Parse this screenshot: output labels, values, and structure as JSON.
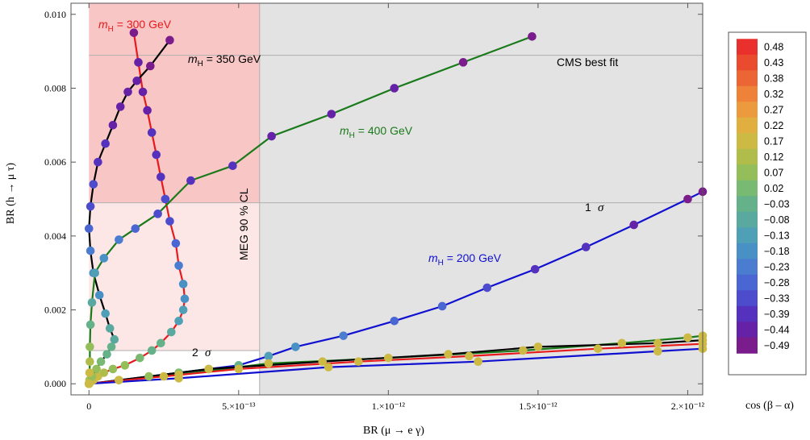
{
  "chart_data": {
    "type": "scatter",
    "xlabel": "BR (μ → e γ)",
    "ylabel": "BR (h → μ τ)",
    "xlim": [
      -6e-14,
      2.05e-12
    ],
    "ylim": [
      -0.0003,
      0.0103
    ],
    "xticks": [
      {
        "value": 0,
        "label": "0"
      },
      {
        "value": 5e-13,
        "label": "5.×10⁻¹³"
      },
      {
        "value": 1e-12,
        "label": "1.×10⁻¹²"
      },
      {
        "value": 1.5e-12,
        "label": "1.5×10⁻¹²"
      },
      {
        "value": 2e-12,
        "label": "2.×10⁻¹²"
      }
    ],
    "yticks": [
      {
        "value": 0.0,
        "label": "0.000"
      },
      {
        "value": 0.002,
        "label": "0.002"
      },
      {
        "value": 0.004,
        "label": "0.004"
      },
      {
        "value": 0.006,
        "label": "0.006"
      },
      {
        "value": 0.008,
        "label": "0.008"
      },
      {
        "value": 0.01,
        "label": "0.010"
      }
    ],
    "regions": {
      "meg_limit_x": 5.7e-13,
      "cms_best_fit_y": 0.00889,
      "one_sigma_y": 0.0049,
      "two_sigma_y": 0.0009,
      "colors": {
        "excluded": "#e3e3e3",
        "band_1sigma": "#f9c6c6",
        "band_2sigma": "#fde6e6"
      }
    },
    "annotations": {
      "meg": "MEG 90 % CL",
      "cms": "CMS best  fit",
      "one_sigma_num": "1",
      "one_sigma_sym": "σ",
      "two_sigma_num": "2",
      "two_sigma_sym": "σ",
      "m300": {
        "m": "m",
        "sub": "H",
        "rest": " = 300  GeV",
        "color": "#e8191c"
      },
      "m350": {
        "m": "m",
        "sub": "H",
        "rest": " = 350  GeV",
        "color": "#000000"
      },
      "m400": {
        "m": "m",
        "sub": "H",
        "rest": " = 400  GeV",
        "color": "#1a7a1a"
      },
      "m200": {
        "m": "m",
        "sub": "H",
        "rest": " = 200  GeV",
        "color": "#1010d0"
      }
    },
    "colorbar": {
      "title": "cos (β – α)",
      "labels": [
        "0.48",
        "0.43",
        "0.38",
        "0.32",
        "0.27",
        "0.22",
        "0.17",
        "0.12",
        "0.07",
        "0.02",
        "−0.03",
        "−0.08",
        "−0.13",
        "−0.18",
        "−0.23",
        "−0.28",
        "−0.33",
        "−0.39",
        "−0.44",
        "−0.49"
      ],
      "colors": [
        "#e9302c",
        "#ea4a2e",
        "#ec6534",
        "#ee8239",
        "#eb9b3e",
        "#e1ae40",
        "#ccba44",
        "#b1bd4a",
        "#93be5a",
        "#78ba72",
        "#65b18a",
        "#5aa9a1",
        "#4f9fb6",
        "#4990c5",
        "#4a7dd0",
        "#4a66d2",
        "#4d4ccd",
        "#5532bd",
        "#6622a6",
        "#7a1c8c"
      ],
      "min": -0.5,
      "max": 0.5
    },
    "series": [
      {
        "name": "m_H = 300 GeV",
        "color": "#e8191c",
        "points": [
          [
            0.0,
            0.0,
            0.2
          ],
          [
            5e-15,
            5e-05,
            0.19
          ],
          [
            1.5e-14,
            0.0001,
            0.18
          ],
          [
            3e-14,
            0.0002,
            0.16
          ],
          [
            5e-14,
            0.0003,
            0.13
          ],
          [
            8e-14,
            0.0004,
            0.1
          ],
          [
            1.2e-13,
            0.0005,
            0.06
          ],
          [
            1.7e-13,
            0.0007,
            0.02
          ],
          [
            2.1e-13,
            0.0009,
            -0.02
          ],
          [
            2.4e-13,
            0.0011,
            -0.05
          ],
          [
            2.75e-13,
            0.0014,
            -0.09
          ],
          [
            3e-13,
            0.0017,
            -0.12
          ],
          [
            3.15e-13,
            0.002,
            -0.15
          ],
          [
            3.2e-13,
            0.0023,
            -0.18
          ],
          [
            3.15e-13,
            0.0027,
            -0.21
          ],
          [
            3e-13,
            0.0032,
            -0.24
          ],
          [
            2.9e-13,
            0.0038,
            -0.28
          ],
          [
            2.7e-13,
            0.0044,
            -0.32
          ],
          [
            2.55e-13,
            0.005,
            -0.35
          ],
          [
            2.4e-13,
            0.0056,
            -0.37
          ],
          [
            2.25e-13,
            0.0062,
            -0.4
          ],
          [
            2.1e-13,
            0.0068,
            -0.42
          ],
          [
            1.95e-13,
            0.0074,
            -0.44
          ],
          [
            1.8e-13,
            0.0079,
            -0.45
          ],
          [
            1.65e-13,
            0.0087,
            -0.47
          ],
          [
            1.5e-13,
            0.0095,
            -0.48
          ]
        ]
      },
      {
        "name": "m_H = 350 GeV",
        "color": "#000000",
        "points": [
          [
            0.0,
            0.0,
            0.2
          ],
          [
            2e-15,
            0.0001,
            0.15
          ],
          [
            1e-14,
            0.0002,
            0.1
          ],
          [
            2.5e-14,
            0.0004,
            0.07
          ],
          [
            4e-14,
            0.0006,
            0.03
          ],
          [
            6e-14,
            0.0008,
            -0.01
          ],
          [
            7.5e-14,
            0.001,
            -0.04
          ],
          [
            8.5e-14,
            0.0012,
            -0.07
          ],
          [
            7e-14,
            0.0015,
            -0.1
          ],
          [
            5.5e-14,
            0.0019,
            -0.14
          ],
          [
            3.5e-14,
            0.0024,
            -0.17
          ],
          [
            1.5e-14,
            0.003,
            -0.21
          ],
          [
            5e-15,
            0.0036,
            -0.25
          ],
          [
            0.0,
            0.0042,
            -0.29
          ],
          [
            5e-15,
            0.0048,
            -0.33
          ],
          [
            1.5e-14,
            0.0054,
            -0.36
          ],
          [
            3e-14,
            0.006,
            -0.39
          ],
          [
            5.5e-14,
            0.0065,
            -0.41
          ],
          [
            8e-14,
            0.007,
            -0.43
          ],
          [
            1.05e-13,
            0.0075,
            -0.45
          ],
          [
            1.3e-13,
            0.0079,
            -0.46
          ],
          [
            1.6e-13,
            0.0082,
            -0.47
          ],
          [
            2.05e-13,
            0.0086,
            -0.48
          ],
          [
            2.7e-13,
            0.0093,
            -0.49
          ]
        ]
      },
      {
        "name": "m_H = 400 GeV",
        "color": "#1a7a1a",
        "points": [
          [
            0.0,
            0.0,
            0.2
          ],
          [
            2e-15,
            0.0003,
            0.16
          ],
          [
            3e-15,
            0.0006,
            0.12
          ],
          [
            3e-15,
            0.001,
            0.06
          ],
          [
            5e-15,
            0.0016,
            0.0
          ],
          [
            1e-14,
            0.0022,
            -0.06
          ],
          [
            2e-14,
            0.003,
            -0.13
          ],
          [
            5e-14,
            0.0034,
            -0.18
          ],
          [
            1e-13,
            0.0039,
            -0.23
          ],
          [
            1.55e-13,
            0.0042,
            -0.28
          ],
          [
            2.3e-13,
            0.0046,
            -0.32
          ],
          [
            3.4e-13,
            0.0055,
            -0.37
          ],
          [
            4.8e-13,
            0.0059,
            -0.4
          ],
          [
            6.1e-13,
            0.0067,
            -0.43
          ],
          [
            8.1e-13,
            0.0073,
            -0.45
          ],
          [
            1.02e-12,
            0.008,
            -0.47
          ],
          [
            1.25e-12,
            0.0087,
            -0.48
          ],
          [
            1.48e-12,
            0.0094,
            -0.49
          ]
        ]
      },
      {
        "name": "m_H = 200 GeV",
        "color": "#1010d0",
        "points": [
          [
            0.0,
            0.0,
            0.2
          ],
          [
            1e-13,
            0.0001,
            0.15
          ],
          [
            2e-13,
            0.0002,
            0.1
          ],
          [
            3e-13,
            0.0003,
            0.05
          ],
          [
            4e-13,
            0.0004,
            0.0
          ],
          [
            5e-13,
            0.0005,
            -0.05
          ],
          [
            6e-13,
            0.00075,
            -0.12
          ],
          [
            6.9e-13,
            0.001,
            -0.16
          ],
          [
            8.5e-13,
            0.0013,
            -0.22
          ],
          [
            1.02e-12,
            0.0017,
            -0.27
          ],
          [
            1.18e-12,
            0.0021,
            -0.31
          ],
          [
            1.33e-12,
            0.0026,
            -0.35
          ],
          [
            1.49e-12,
            0.0031,
            -0.39
          ],
          [
            1.66e-12,
            0.0037,
            -0.42
          ],
          [
            1.82e-12,
            0.0043,
            -0.45
          ],
          [
            2e-12,
            0.005,
            -0.48
          ],
          [
            2.05e-12,
            0.0052,
            -0.49
          ]
        ]
      },
      {
        "name": "",
        "color": "#1a7a1a",
        "points": [
          [
            0.0,
            0.0,
            0.2
          ],
          [
            3e-13,
            0.00025,
            0.21
          ],
          [
            6e-13,
            0.00055,
            0.21
          ],
          [
            1e-12,
            0.0007,
            0.2
          ],
          [
            1.45e-12,
            0.0009,
            0.2
          ],
          [
            1.78e-12,
            0.0011,
            0.2
          ],
          [
            2e-12,
            0.00125,
            0.2
          ],
          [
            2.05e-12,
            0.0013,
            0.2
          ]
        ]
      },
      {
        "name": "",
        "color": "#000000",
        "points": [
          [
            0.0,
            0.0,
            0.2
          ],
          [
            1e-13,
            0.0001,
            0.2
          ],
          [
            4e-13,
            0.0004,
            0.21
          ],
          [
            7.8e-13,
            0.0006,
            0.21
          ],
          [
            1.2e-12,
            0.0008,
            0.2
          ],
          [
            1.5e-12,
            0.001,
            0.2
          ],
          [
            1.9e-12,
            0.0011,
            0.2
          ],
          [
            2.05e-12,
            0.00118,
            0.2
          ]
        ]
      },
      {
        "name": "",
        "color": "#e8191c",
        "points": [
          [
            0.0,
            0.0,
            0.2
          ],
          [
            2.5e-13,
            0.0002,
            0.2
          ],
          [
            5e-13,
            0.0004,
            0.21
          ],
          [
            9e-13,
            0.0006,
            0.21
          ],
          [
            1.27e-12,
            0.00075,
            0.2
          ],
          [
            1.7e-12,
            0.00095,
            0.2
          ],
          [
            2.05e-12,
            0.00108,
            0.2
          ]
        ]
      },
      {
        "name": "",
        "color": "#1010d0",
        "points": [
          [
            0.0,
            0.0,
            0.2
          ],
          [
            3e-13,
            0.00015,
            0.21
          ],
          [
            8e-13,
            0.00045,
            0.21
          ],
          [
            1.3e-12,
            0.0006,
            0.2
          ],
          [
            1.9e-12,
            0.00088,
            0.2
          ],
          [
            2.05e-12,
            0.00095,
            0.2
          ]
        ]
      }
    ]
  }
}
